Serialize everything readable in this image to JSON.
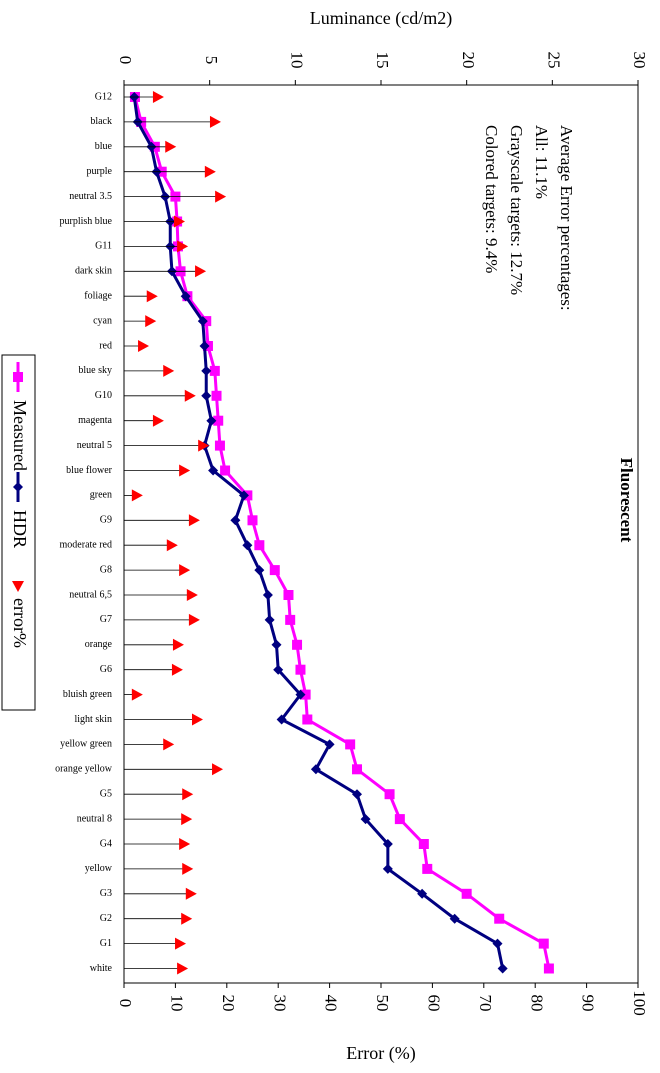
{
  "chart_data": {
    "type": "line",
    "title": "Fluorescent",
    "y_label": "Luminance (cd/m2)",
    "y2_label": "Error (%)",
    "annotations": [
      "Average Error percentages:",
      "All: 11.1%",
      "Grayscale targets: 12.7%",
      "Colored targets: 9.4%"
    ],
    "categories": [
      "G12",
      "black",
      "blue",
      "purple",
      "neutral 3.5",
      "purplish blue",
      "G11",
      "dark skin",
      "foliage",
      "cyan",
      "red",
      "blue sky",
      "G10",
      "magenta",
      "neutral 5",
      "blue flower",
      "green",
      "G9",
      "moderate red",
      "G8",
      "neutral 6,5",
      "G7",
      "orange",
      "G6",
      "bluish green",
      "light skin",
      "yellow green",
      "orange yellow",
      "G5",
      "neutral 8",
      "G4",
      "yellow",
      "G3",
      "G2",
      "G1",
      "white"
    ],
    "series": [
      {
        "name": "Measured",
        "color": "#ff00ff",
        "marker": "square",
        "values": [
          0.64,
          1.0,
          1.8,
          2.2,
          3.0,
          3.1,
          3.15,
          3.3,
          3.7,
          4.8,
          4.9,
          5.3,
          5.4,
          5.5,
          5.6,
          5.9,
          7.2,
          7.5,
          7.9,
          8.8,
          9.6,
          9.7,
          10.1,
          10.3,
          10.6,
          10.7,
          13.2,
          13.6,
          15.5,
          16.1,
          17.5,
          17.7,
          20.0,
          21.9,
          24.5,
          24.8
        ]
      },
      {
        "name": "HDR",
        "color": "#000080",
        "marker": "diamond",
        "values": [
          0.6,
          0.8,
          1.6,
          1.9,
          2.4,
          2.7,
          2.7,
          2.8,
          3.6,
          4.6,
          4.7,
          4.8,
          4.8,
          5.1,
          4.7,
          5.2,
          7.0,
          6.5,
          7.2,
          7.9,
          8.4,
          8.5,
          8.9,
          9.0,
          10.3,
          9.2,
          12.0,
          11.2,
          13.6,
          14.1,
          15.4,
          15.4,
          17.4,
          19.3,
          21.8,
          22.1
        ]
      },
      {
        "name": "error%",
        "color": "#ff0000",
        "marker": "triangle",
        "axis": "y2",
        "values": [
          6.6,
          17.7,
          9.0,
          16.7,
          18.7,
          10.7,
          11.3,
          14.8,
          5.4,
          5.1,
          3.7,
          8.6,
          12.8,
          6.6,
          15.4,
          11.7,
          2.5,
          13.6,
          9.3,
          11.7,
          13.2,
          13.6,
          10.5,
          10.3,
          2.5,
          14.2,
          8.6,
          18.1,
          12.3,
          12.1,
          11.7,
          12.3,
          13.0,
          12.1,
          10.9,
          11.3
        ]
      }
    ],
    "ylim": [
      0,
      30
    ],
    "yticks": [
      0,
      5,
      10,
      15,
      20,
      25,
      30
    ],
    "y2lim": [
      0,
      100
    ],
    "y2ticks": [
      0,
      10,
      20,
      30,
      40,
      50,
      60,
      70,
      80,
      90,
      100
    ],
    "legend": "left"
  }
}
